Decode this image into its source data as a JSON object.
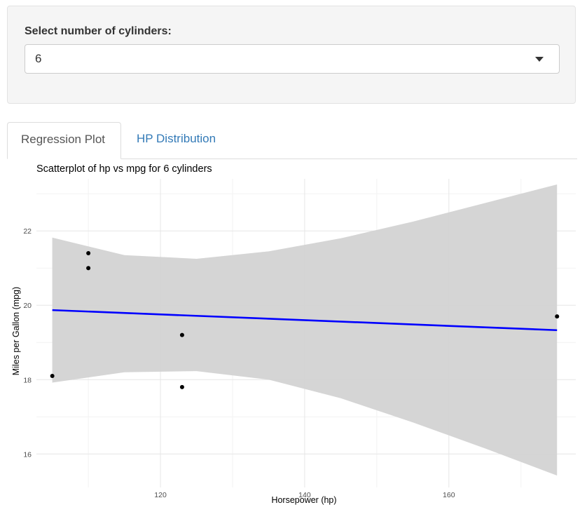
{
  "controls": {
    "label": "Select number of cylinders:",
    "selected": "6"
  },
  "tabs": [
    {
      "label": "Regression Plot",
      "active": true
    },
    {
      "label": "HP Distribution",
      "active": false
    }
  ],
  "colors": {
    "regression_line": "#0000ff",
    "confidence_band": "#d3d3d3",
    "points": "#000000",
    "tab_link": "#337ab7"
  },
  "chart_data": {
    "type": "scatter",
    "title": "Scatterplot of hp vs mpg for 6 cylinders",
    "xlabel": "Horsepower (hp)",
    "ylabel": "Miles per Gallon (mpg)",
    "xlim": [
      102.8,
      177.6
    ],
    "ylim": [
      15.1,
      23.4
    ],
    "xticks": [
      120,
      140,
      160
    ],
    "yticks": [
      16,
      18,
      20,
      22
    ],
    "grid": true,
    "points": [
      {
        "x": 105,
        "y": 18.1
      },
      {
        "x": 110,
        "y": 21.0
      },
      {
        "x": 110,
        "y": 21.4
      },
      {
        "x": 123,
        "y": 19.2
      },
      {
        "x": 123,
        "y": 17.8
      },
      {
        "x": 175,
        "y": 19.7
      }
    ],
    "regression": {
      "x": [
        105,
        175
      ],
      "y": [
        19.87,
        19.33
      ]
    },
    "confidence_band": {
      "x": [
        105,
        115,
        125,
        135,
        145,
        155,
        165,
        175
      ],
      "upper": [
        21.82,
        21.35,
        21.25,
        21.45,
        21.8,
        22.25,
        22.75,
        23.25
      ],
      "lower": [
        17.92,
        18.2,
        18.23,
        18.0,
        17.5,
        16.85,
        16.15,
        15.42
      ]
    }
  }
}
